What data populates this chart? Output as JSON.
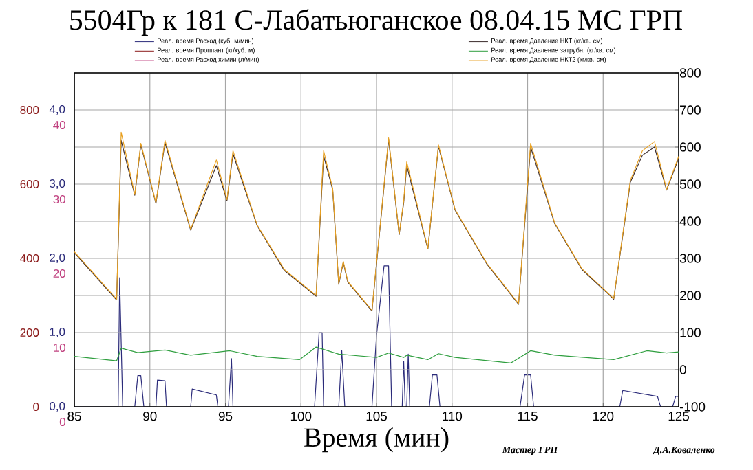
{
  "chart_data": {
    "type": "line",
    "title": "5504Гр к 181 С-Лабатьюганское 08.04.15 МС ГРП",
    "xlabel": "Время (мин)",
    "xlim": [
      85,
      125
    ],
    "xticks": [
      85,
      90,
      95,
      100,
      105,
      110,
      115,
      120,
      125
    ],
    "ylim": [
      0,
      4.5
    ],
    "yticks": [
      {
        "value": 0,
        "label": "0,0"
      },
      {
        "value": 1,
        "label": "1,0"
      },
      {
        "value": 2,
        "label": "2,0"
      },
      {
        "value": 3,
        "label": "3,0"
      },
      {
        "value": 4,
        "label": "4,0"
      }
    ],
    "y2lim": [
      -100,
      800
    ],
    "y2ticks": [
      -100,
      0,
      100,
      200,
      300,
      400,
      500,
      600,
      700,
      800
    ],
    "y3lim": [
      0,
      900
    ],
    "y3ticks": [
      0,
      200,
      400,
      600,
      800
    ],
    "grid": true,
    "legend": "top",
    "series": [
      {
        "name": "Реал. время Расход (куб. м/мин)",
        "color": "#2b2b7a",
        "axis": "y",
        "x": [
          85,
          87.9,
          88.0,
          88.2,
          89.0,
          89.2,
          89.4,
          89.6,
          90.4,
          90.5,
          91.0,
          91.1,
          92.7,
          92.8,
          94.4,
          94.5,
          95.2,
          95.4,
          95.5,
          100.9,
          101.2,
          101.4,
          101.5,
          102.5,
          102.7,
          102.9,
          104.7,
          105.0,
          105.5,
          105.8,
          106.0,
          106.7,
          106.8,
          106.9,
          107.0,
          107.1,
          107.2,
          108.5,
          108.7,
          109.0,
          109.2,
          114.5,
          114.8,
          115.2,
          115.4,
          121.1,
          121.3,
          123.6,
          123.8,
          124.6,
          124.8,
          125
        ],
        "values": [
          0,
          0,
          1.74,
          0,
          0,
          0.42,
          0.42,
          0,
          0,
          0.36,
          0.35,
          0,
          0,
          0.24,
          0.16,
          0,
          0,
          0.65,
          0,
          0,
          1.0,
          1.0,
          0,
          0,
          0.76,
          0,
          0,
          0.96,
          1.9,
          1.9,
          0,
          0,
          0.61,
          0,
          0,
          0.71,
          0,
          0,
          0.43,
          0.43,
          0,
          0,
          0.43,
          0.43,
          0,
          0,
          0.22,
          0.14,
          0,
          0,
          0.14,
          0.14
        ]
      },
      {
        "name": "Реал. время Проппант (кг/куб. м)",
        "color": "#8b1a1a",
        "axis": "y3",
        "values": [
          null,
          null
        ]
      },
      {
        "name": "Реал. время Расход химии (л/мин)",
        "color": "#c0407f",
        "axis": "y3",
        "values": [
          null,
          null
        ]
      },
      {
        "name": "Реал. время Давление НКТ (кг/кв. см)",
        "color": "#3a2a2a",
        "axis": "y2",
        "x": [
          85,
          87.8,
          88.1,
          89.0,
          89.4,
          90.4,
          91.0,
          92.7,
          94.4,
          95.1,
          95.5,
          97.1,
          98.9,
          101.0,
          101.5,
          102.1,
          102.5,
          102.8,
          103.1,
          104.7,
          105.0,
          105.8,
          106.5,
          106.8,
          107.0,
          108.4,
          109.1,
          110.2,
          112.3,
          114.4,
          115.2,
          116.8,
          118.6,
          120.7,
          121.8,
          122.6,
          123.4,
          124.2,
          125
        ],
        "values": [
          315,
          188,
          618,
          470,
          606,
          448,
          612,
          376,
          550,
          455,
          582,
          388,
          267,
          198,
          576,
          485,
          230,
          289,
          236,
          158,
          285,
          620,
          364,
          450,
          550,
          325,
          602,
          430,
          285,
          176,
          600,
          393,
          270,
          190,
          505,
          578,
          600,
          484,
          570
        ]
      },
      {
        "name": "Реал. время Давление затрубн. (кг/кв. см)",
        "color": "#2e9e3e",
        "axis": "y2",
        "x": [
          85,
          87.8,
          88.1,
          89.2,
          91.0,
          92.7,
          95.3,
          97.1,
          99.9,
          101.0,
          102.5,
          105.0,
          105.8,
          106.8,
          107.0,
          108.4,
          109.1,
          110.2,
          113.9,
          115.2,
          116.8,
          120.7,
          122.9,
          124.2,
          125
        ],
        "values": [
          36,
          24,
          58,
          46,
          53,
          39,
          51,
          36,
          27,
          61,
          42,
          33,
          45,
          33,
          39,
          27,
          43,
          33,
          18,
          51,
          39,
          27,
          51,
          45,
          48
        ]
      },
      {
        "name": "Реал. время Давление НКТ2 (кг/кв. см)",
        "color": "#e8a020",
        "axis": "y2",
        "x": [
          85,
          87.8,
          88.1,
          89.0,
          89.4,
          90.4,
          91.0,
          92.7,
          94.4,
          95.1,
          95.5,
          97.1,
          98.9,
          101.0,
          101.5,
          102.1,
          102.5,
          102.8,
          103.1,
          104.7,
          105.0,
          105.8,
          106.5,
          106.8,
          107.0,
          108.4,
          109.1,
          110.2,
          112.3,
          114.4,
          115.2,
          116.8,
          118.6,
          120.7,
          121.8,
          122.6,
          123.4,
          124.2,
          125
        ],
        "values": [
          318,
          190,
          640,
          472,
          610,
          450,
          618,
          378,
          565,
          458,
          590,
          390,
          270,
          200,
          590,
          488,
          232,
          292,
          238,
          160,
          288,
          625,
          366,
          455,
          560,
          327,
          606,
          432,
          287,
          178,
          610,
          395,
          272,
          192,
          510,
          590,
          615,
          486,
          575
        ]
      }
    ],
    "annotations": [
      "40",
      "30",
      "20",
      "10",
      "0",
      "Мастер ГРП",
      "Д.А.Коваленко"
    ]
  }
}
